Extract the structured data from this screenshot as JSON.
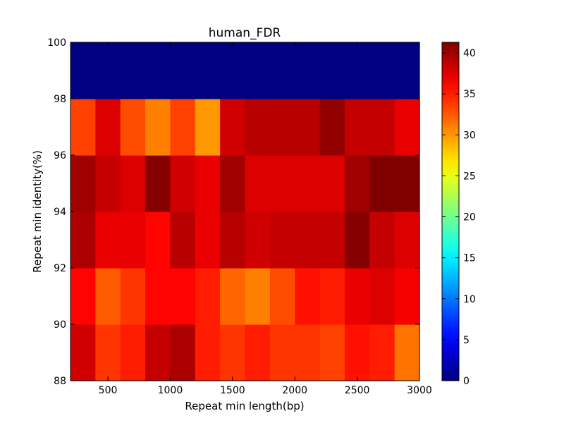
{
  "chart_data": {
    "type": "heatmap",
    "title": "human_FDR",
    "xlabel": "Repeat min length(bp)",
    "ylabel": "Repeat min identity(%)",
    "xlim": [
      200,
      3000
    ],
    "ylim": [
      88,
      100
    ],
    "x_bin_starts": [
      200,
      400,
      600,
      800,
      1000,
      1200,
      1400,
      1600,
      1800,
      2000,
      2200,
      2400,
      2600,
      2800
    ],
    "x_bin_width": 200,
    "y_bin_starts": [
      88,
      90,
      92,
      94,
      96,
      98
    ],
    "y_bin_height": 2,
    "x_ticks": [
      500,
      1000,
      1500,
      2000,
      2500,
      3000
    ],
    "y_ticks": [
      88,
      90,
      92,
      94,
      96,
      98,
      100
    ],
    "colorbar": {
      "colormap": "jet",
      "min": 0,
      "max": 41.3,
      "ticks": [
        0,
        5,
        10,
        15,
        20,
        25,
        30,
        35,
        40
      ]
    },
    "values": [
      [
        38.0,
        34.0,
        35.0,
        38.5,
        39.5,
        35.0,
        34.0,
        35.0,
        34.0,
        34.0,
        33.5,
        35.5,
        35.0,
        31.5
      ],
      [
        36.0,
        32.5,
        34.0,
        36.0,
        36.0,
        35.0,
        32.0,
        31.0,
        33.0,
        35.5,
        35.0,
        37.0,
        37.5,
        36.5
      ],
      [
        39.5,
        37.0,
        37.0,
        36.0,
        39.0,
        37.0,
        39.0,
        38.0,
        38.5,
        38.5,
        38.5,
        41.0,
        38.5,
        37.5
      ],
      [
        40.0,
        38.5,
        37.5,
        41.0,
        38.0,
        37.0,
        40.0,
        37.5,
        37.5,
        37.5,
        37.5,
        40.0,
        41.3,
        41.3
      ],
      [
        33.5,
        37.5,
        33.0,
        31.0,
        33.5,
        30.0,
        38.0,
        39.0,
        39.0,
        39.0,
        40.5,
        38.5,
        38.5,
        37.0
      ],
      [
        0,
        0,
        0,
        0,
        0,
        0,
        0,
        0,
        0,
        0,
        0,
        0,
        0,
        0
      ]
    ]
  }
}
